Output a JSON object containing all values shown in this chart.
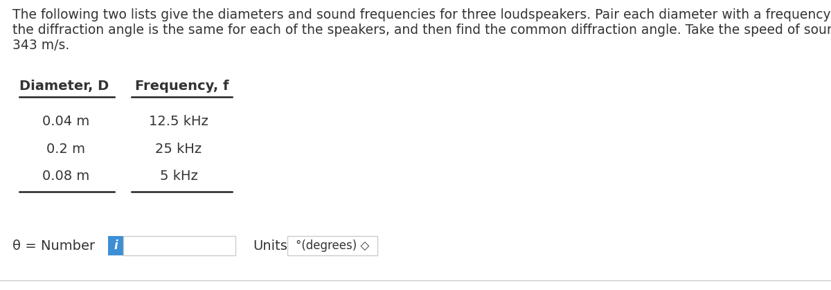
{
  "bg_color": "#ffffff",
  "description_line1": "The following two lists give the diameters and sound frequencies for three loudspeakers. Pair each diameter with a frequency, so that",
  "description_line2": "the diffraction angle is the same for each of the speakers, and then find the common diffraction angle. Take the speed of sound to be",
  "description_line3": "343 m/s.",
  "col1_header": "Diameter, D",
  "col2_header": "Frequency, f",
  "col1_data": [
    "0.04 m",
    "0.2 m",
    "0.08 m"
  ],
  "col2_data": [
    "12.5 kHz",
    "25 kHz",
    "5 kHz"
  ],
  "theta_label": "θ = Number",
  "units_label": "Units",
  "units_value": "°(degrees) ◇",
  "info_button_color": "#3d8fd4",
  "text_color": "#333333",
  "line_color": "#222222",
  "bottom_line_color": "#cccccc",
  "border_color": "#cccccc",
  "desc_fontsize": 13.5,
  "header_fontsize": 14,
  "body_fontsize": 14
}
